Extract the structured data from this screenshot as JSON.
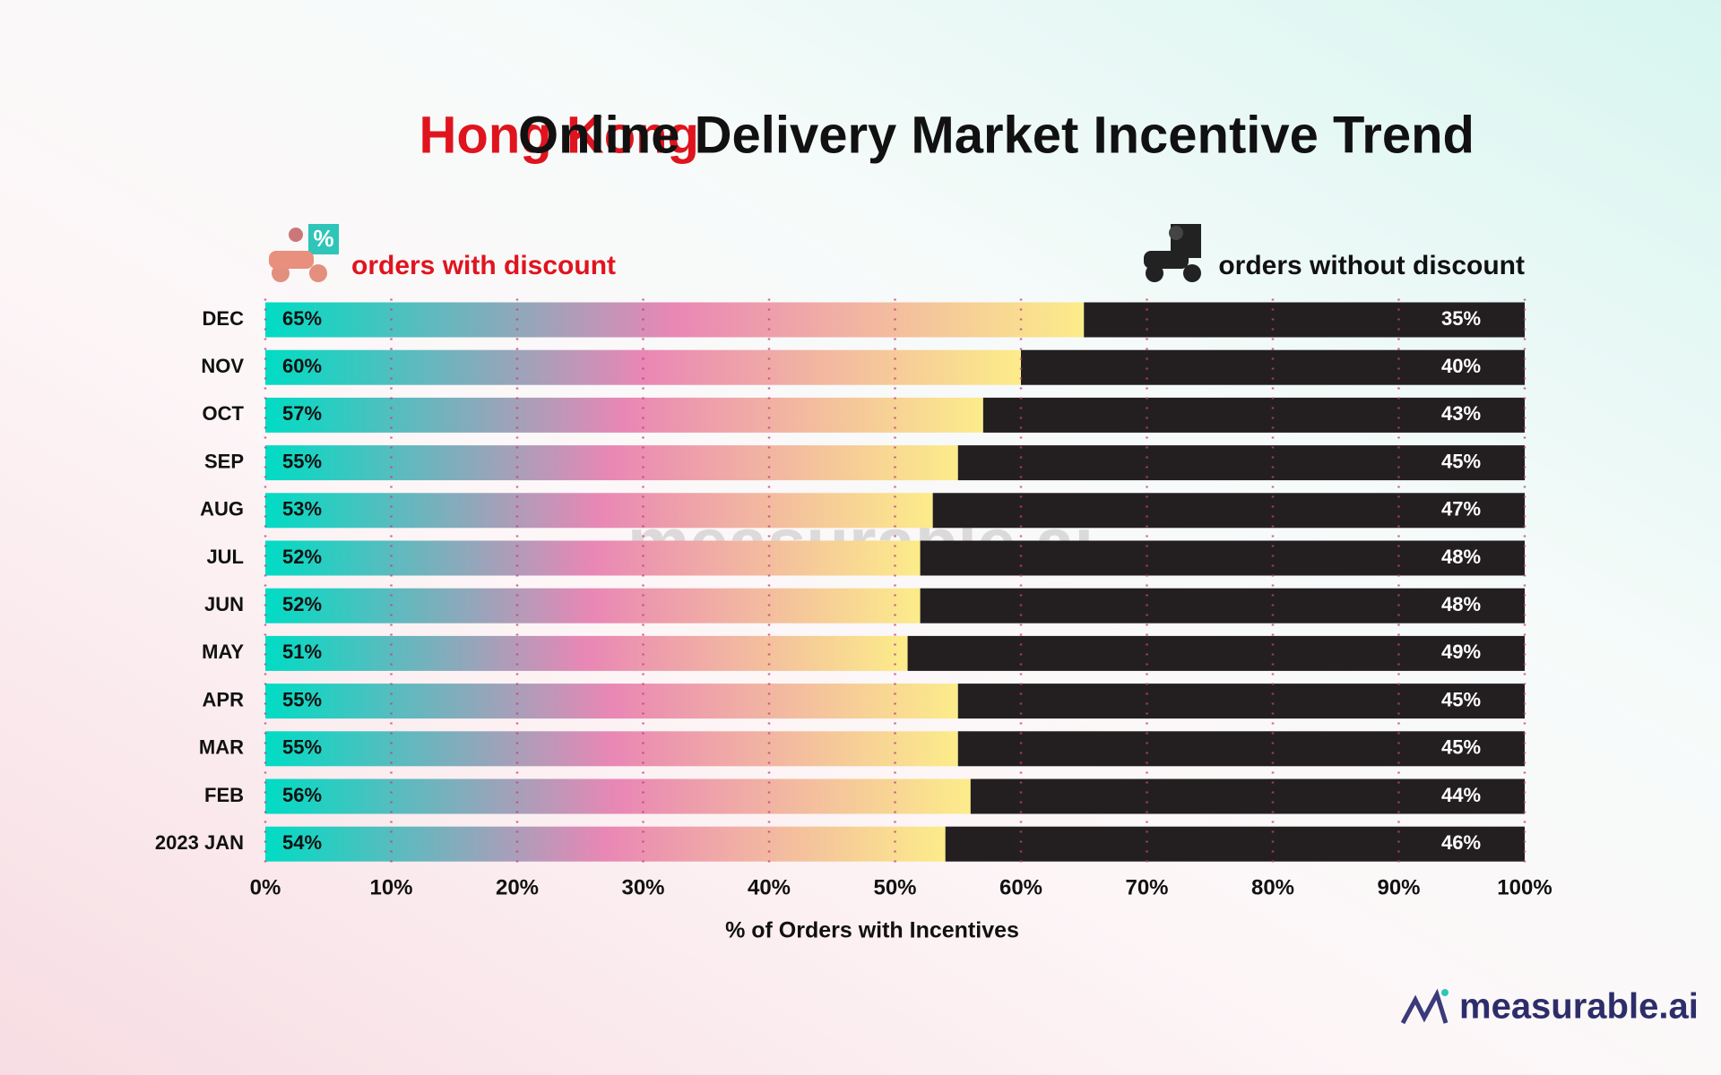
{
  "chart_data": {
    "type": "stacked_bar_horizontal",
    "title_highlight": "Hong Kong",
    "title": "Online Delivery Market Incentive Trend",
    "x_label": "% of Orders with Incentives",
    "brand": "measurable.ai",
    "categories": [
      "DEC",
      "NOV",
      "OCT",
      "SEP",
      "AUG",
      "JUL",
      "JUN",
      "MAY",
      "APR",
      "MAR",
      "FEB",
      "2023 JAN"
    ],
    "series": [
      {
        "name": "orders with discount",
        "gradient": [
          "#00dcc4",
          "#e987b5",
          "#fcec8a"
        ],
        "values": [
          65,
          60,
          57,
          55,
          53,
          52,
          52,
          51,
          55,
          55,
          56,
          54
        ],
        "value_labels": [
          "65%",
          "60%",
          "57%",
          "55%",
          "53%",
          "52%",
          "52%",
          "51%",
          "55%",
          "55%",
          "56%",
          "54%"
        ]
      },
      {
        "name": "orders without discount",
        "color": "#231f20",
        "values": [
          35,
          40,
          43,
          45,
          47,
          48,
          48,
          49,
          45,
          45,
          44,
          46
        ],
        "value_labels": [
          "35%",
          "40%",
          "43%",
          "45%",
          "47%",
          "48%",
          "48%",
          "49%",
          "45%",
          "45%",
          "44%",
          "46%"
        ]
      }
    ],
    "xlim": [
      0,
      100
    ],
    "xticks": [
      {
        "value": 0,
        "label": "0%"
      },
      {
        "value": 10,
        "label": "10%"
      },
      {
        "value": 20,
        "label": "20%"
      },
      {
        "value": 30,
        "label": "30%"
      },
      {
        "value": 40,
        "label": "40%"
      },
      {
        "value": 50,
        "label": "50%"
      },
      {
        "value": 60,
        "label": "60%"
      },
      {
        "value": 70,
        "label": "70%"
      },
      {
        "value": 80,
        "label": "80%"
      },
      {
        "value": 90,
        "label": "90%"
      },
      {
        "value": 100,
        "label": "100%"
      }
    ],
    "grid": true,
    "grid_color": "#c2407e"
  }
}
